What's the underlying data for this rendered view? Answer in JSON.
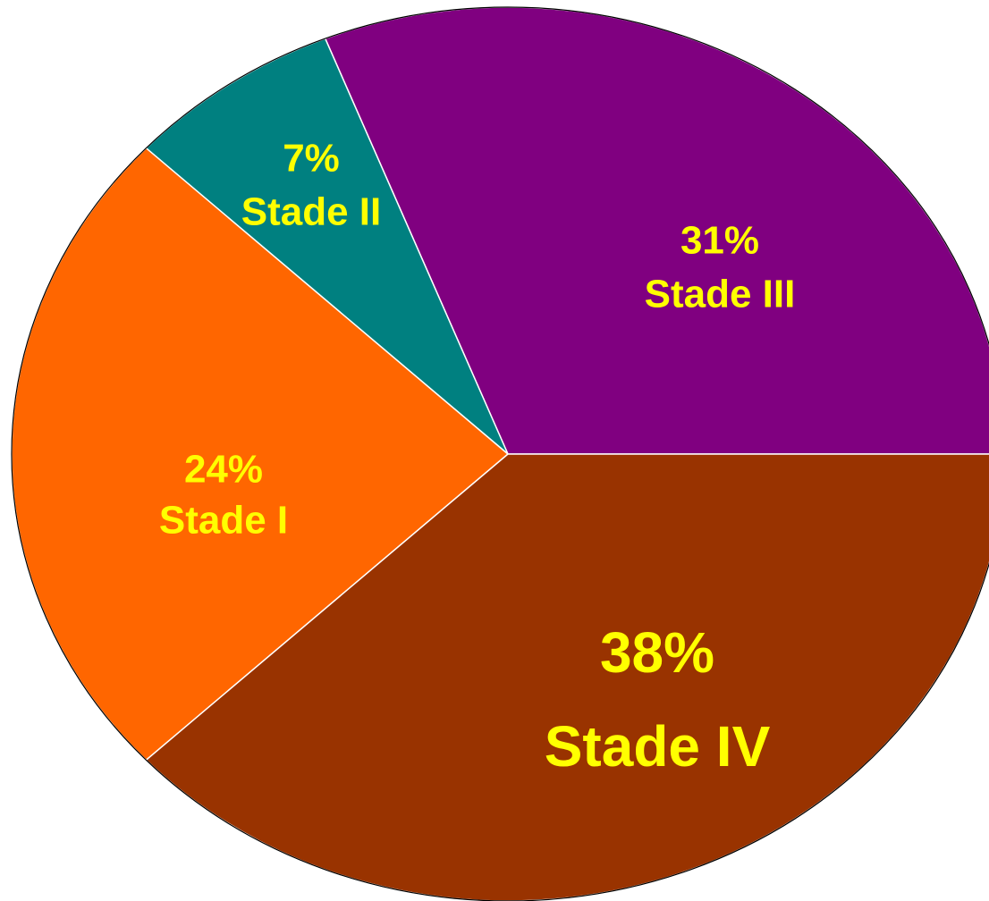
{
  "chart_data": {
    "type": "pie",
    "categories": [
      "Stade III",
      "Stade II",
      "Stade I",
      "Stade IV"
    ],
    "values": [
      31,
      7,
      24,
      38
    ],
    "value_labels": [
      "31%",
      "7%",
      "24%",
      "38%"
    ],
    "colors": [
      "#800080",
      "#008080",
      "#ff6600",
      "#993300"
    ],
    "label_color": "#ffff00"
  }
}
